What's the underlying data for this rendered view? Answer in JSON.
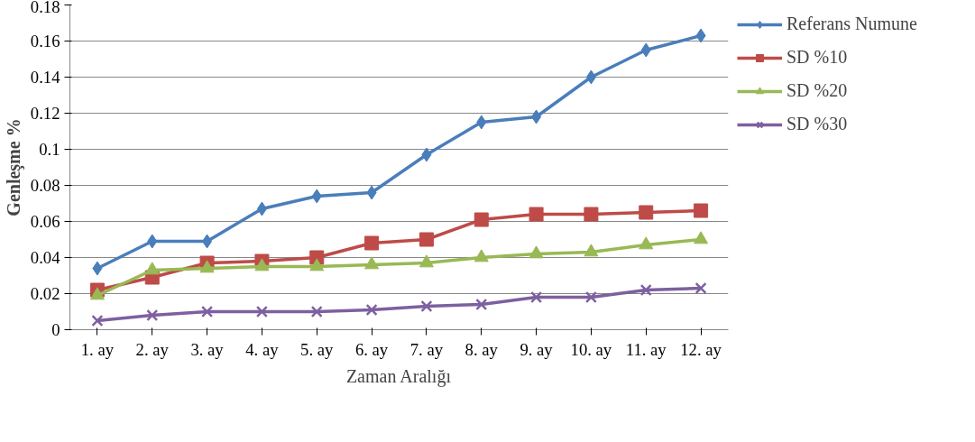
{
  "chart_data": {
    "type": "line",
    "xlabel": "Zaman Aralığı",
    "ylabel": "Genleşme %",
    "categories": [
      "1. ay",
      "2. ay",
      "3. ay",
      "4. ay",
      "5. ay",
      "6. ay",
      "7. ay",
      "8. ay",
      "9. ay",
      "10. ay",
      "11. ay",
      "12. ay"
    ],
    "series": [
      {
        "name": "Referans Numune",
        "color": "#4a7ebb",
        "marker": "diamond",
        "values": [
          0.034,
          0.049,
          0.049,
          0.067,
          0.074,
          0.076,
          0.097,
          0.115,
          0.118,
          0.14,
          0.155,
          0.163
        ]
      },
      {
        "name": "SD %10",
        "color": "#be4b48",
        "marker": "square",
        "values": [
          0.022,
          0.029,
          0.037,
          0.038,
          0.04,
          0.048,
          0.05,
          0.061,
          0.064,
          0.064,
          0.065,
          0.066
        ]
      },
      {
        "name": "SD %20",
        "color": "#98b954",
        "marker": "triangle",
        "values": [
          0.019,
          0.033,
          0.034,
          0.035,
          0.035,
          0.036,
          0.037,
          0.04,
          0.042,
          0.043,
          0.047,
          0.05
        ]
      },
      {
        "name": "SD %30",
        "color": "#7d60a0",
        "marker": "cross",
        "values": [
          0.005,
          0.008,
          0.01,
          0.01,
          0.01,
          0.011,
          0.013,
          0.014,
          0.018,
          0.018,
          0.022,
          0.023
        ]
      }
    ],
    "ylim": [
      0,
      0.18
    ],
    "yticks": [
      0,
      0.02,
      0.04,
      0.06,
      0.08,
      0.1,
      0.12,
      0.14,
      0.16,
      0.18
    ],
    "grid": "y",
    "legend": "right",
    "line_style": "solid"
  }
}
